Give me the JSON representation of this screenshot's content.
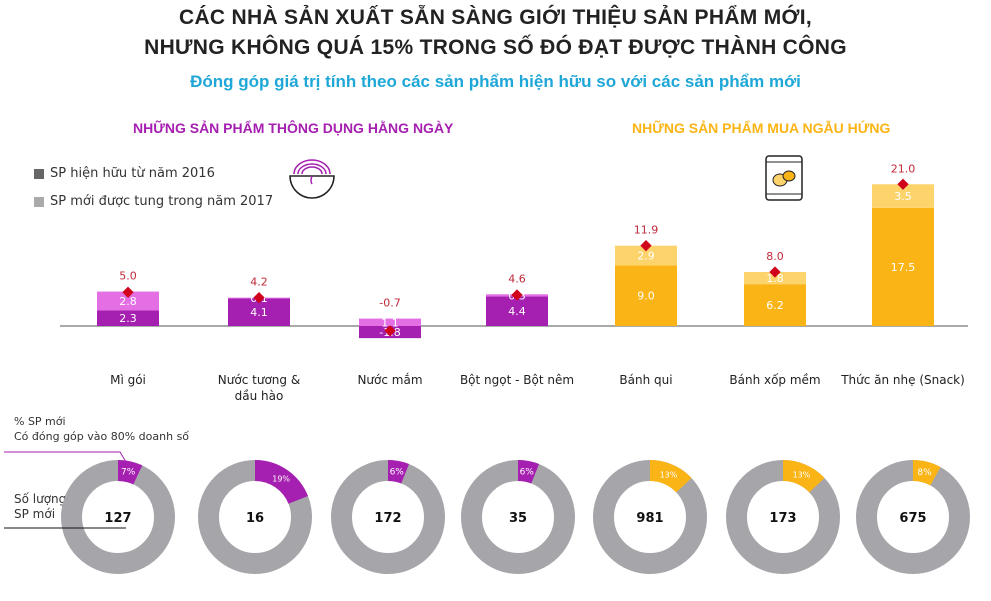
{
  "title_line1": "CÁC NHÀ SẢN XUẤT SẴN SÀNG GIỚI THIỆU SẢN PHẨM MỚI,",
  "title_line2": "NHƯNG KHÔNG QUÁ 15% TRONG SỐ ĐÓ ĐẠT ĐƯỢC THÀNH CÔNG",
  "subtitle": "Đóng góp giá trị tính theo các sản phẩm hiện hữu so với các sản phẩm mới",
  "group_daily": "NHỮNG SẢN PHẨM THÔNG DỤNG HẰNG NGÀY",
  "group_impulse": "NHỮNG SẢN PHẨM MUA NGẪU HỨNG",
  "legend": {
    "existing": "SP hiện hữu từ năm 2016",
    "new": "SP mới được tung trong năm 2017"
  },
  "notes": {
    "pct_line1": "% SP mới",
    "pct_line2": "Có đóng góp vào 80% doanh số",
    "count_line1": "Số lượng",
    "count_line2": "SP mới"
  },
  "colors": {
    "daily_existing": "#a51fb0",
    "daily_new": "#e46ee4",
    "impulse_existing": "#fbb415",
    "impulse_new": "#fdd36b",
    "total_marker": "#d0021b",
    "donut_rest": "#a6a6aa"
  },
  "icons": [
    "noodle-bowl-icon",
    "snack-bag-icon"
  ],
  "chart_data": [
    {
      "type": "bar",
      "stacked": true,
      "categories": [
        "Mì gói",
        "Nước tương & dầu hào",
        "Nước mắm",
        "Bột ngọt - Bột nêm",
        "Bánh qui",
        "Bánh xốp mềm",
        "Thức ăn nhẹ (Snack)"
      ],
      "category_lines": [
        [
          "Mì gói"
        ],
        [
          "Nước tương &",
          "dầu hào"
        ],
        [
          "Nước mắm"
        ],
        [
          "Bột ngọt - Bột nêm"
        ],
        [
          "Bánh qui"
        ],
        [
          "Bánh xốp mềm"
        ],
        [
          "Thức ăn nhẹ (Snack)"
        ]
      ],
      "groups": [
        "daily",
        "daily",
        "daily",
        "daily",
        "impulse",
        "impulse",
        "impulse"
      ],
      "series": [
        {
          "name": "SP hiện hữu từ năm 2016",
          "values": [
            2.3,
            4.1,
            -1.8,
            4.4,
            9.0,
            6.2,
            17.5
          ]
        },
        {
          "name": "SP mới được tung trong năm 2017",
          "values": [
            2.8,
            0.1,
            1.1,
            0.3,
            2.9,
            1.8,
            3.5
          ]
        }
      ],
      "totals": [
        5.0,
        4.2,
        -0.7,
        4.6,
        11.9,
        8.0,
        21.0
      ],
      "grid": false
    },
    {
      "type": "pie",
      "donut": true,
      "categories": [
        "Mì gói",
        "Nước tương & dầu hào",
        "Nước mắm",
        "Bột ngọt - Bột nêm",
        "Bánh qui",
        "Bánh xốp mềm",
        "Thức ăn nhẹ (Snack)"
      ],
      "pct_new": [
        7,
        19,
        6,
        6,
        13,
        13,
        8
      ],
      "count_new": [
        127,
        16,
        172,
        35,
        981,
        173,
        675
      ]
    }
  ]
}
